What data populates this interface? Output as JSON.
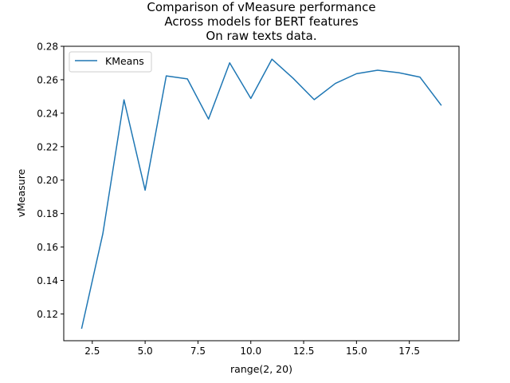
{
  "chart_data": {
    "type": "line",
    "title_lines": [
      "Comparison of vMeasure performance",
      "Across models for BERT features",
      "On raw texts data."
    ],
    "xlabel": "range(2, 20)",
    "ylabel": "vMeasure",
    "xlim": [
      1.15,
      19.85
    ],
    "ylim": [
      0.104,
      0.28
    ],
    "x_ticks": [
      2.5,
      5.0,
      7.5,
      10.0,
      12.5,
      15.0,
      17.5
    ],
    "x_tick_labels": [
      "2.5",
      "5.0",
      "7.5",
      "10.0",
      "12.5",
      "15.0",
      "17.5"
    ],
    "y_ticks": [
      0.12,
      0.14,
      0.16,
      0.18,
      0.2,
      0.22,
      0.24,
      0.26,
      0.28
    ],
    "y_tick_labels": [
      "0.12",
      "0.14",
      "0.16",
      "0.18",
      "0.20",
      "0.22",
      "0.24",
      "0.26",
      "0.28"
    ],
    "legend_position": "upper-left",
    "grid": false,
    "series": [
      {
        "name": "KMeans",
        "color": "#1f77b4",
        "x": [
          2,
          3,
          4,
          5,
          6,
          7,
          8,
          9,
          10,
          11,
          12,
          13,
          14,
          15,
          16,
          17,
          18,
          19
        ],
        "y": [
          0.1115,
          0.168,
          0.248,
          0.194,
          0.2623,
          0.2605,
          0.2365,
          0.2701,
          0.2488,
          0.2723,
          0.2609,
          0.2481,
          0.2578,
          0.2636,
          0.2657,
          0.2642,
          0.2616,
          0.2449
        ]
      }
    ]
  }
}
